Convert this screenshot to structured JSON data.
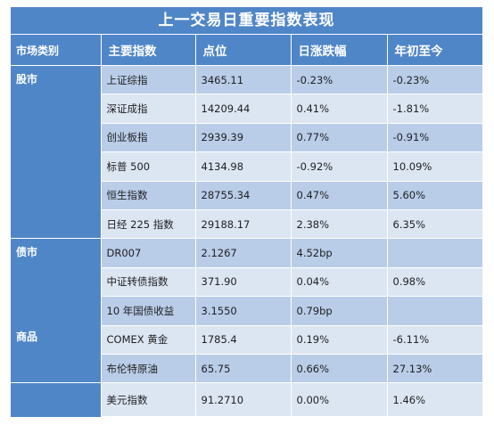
{
  "title": "上一交易日重要指数表现",
  "headers": [
    "市场类别",
    "主要指数",
    "点位",
    "日涨跌幅",
    "年初至今"
  ],
  "groups": [
    {
      "label": "股市"
    },
    {
      "label": "债市"
    },
    {
      "label": "商品"
    }
  ],
  "rows": [
    {
      "name": "上证综指",
      "point": "3465.11",
      "daily": "-0.23%",
      "ytd": "-0.23%"
    },
    {
      "name": "深证成指",
      "point": "14209.44",
      "daily": "0.41%",
      "ytd": "-1.81%"
    },
    {
      "name": "创业板指",
      "point": "2939.39",
      "daily": "0.77%",
      "ytd": "-0.91%"
    },
    {
      "name": "标普 500",
      "point": "4134.98",
      "daily": "-0.92%",
      "ytd": "10.09%"
    },
    {
      "name": "恒生指数",
      "point": "28755.34",
      "daily": "0.47%",
      "ytd": "5.60%"
    },
    {
      "name": "日经 225 指数",
      "point": "29188.17",
      "daily": "2.38%",
      "ytd": "6.35%"
    },
    {
      "name": "DR007",
      "point": "2.1267",
      "daily": "4.52bp",
      "ytd": ""
    },
    {
      "name": "中证转债指数",
      "point": "371.90",
      "daily": "0.04%",
      "ytd": "0.98%"
    },
    {
      "name": "10 年国债收益",
      "point": "3.1550",
      "daily": "0.79bp",
      "ytd": ""
    },
    {
      "name": "COMEX 黄金",
      "point": "1785.4",
      "daily": "0.19%",
      "ytd": "-6.11%"
    },
    {
      "name": "布伦特原油",
      "point": "65.75",
      "daily": "0.66%",
      "ytd": "27.13%"
    },
    {
      "name": "美元指数",
      "point": "91.2710",
      "daily": "0.00%",
      "ytd": "1.46%"
    }
  ]
}
